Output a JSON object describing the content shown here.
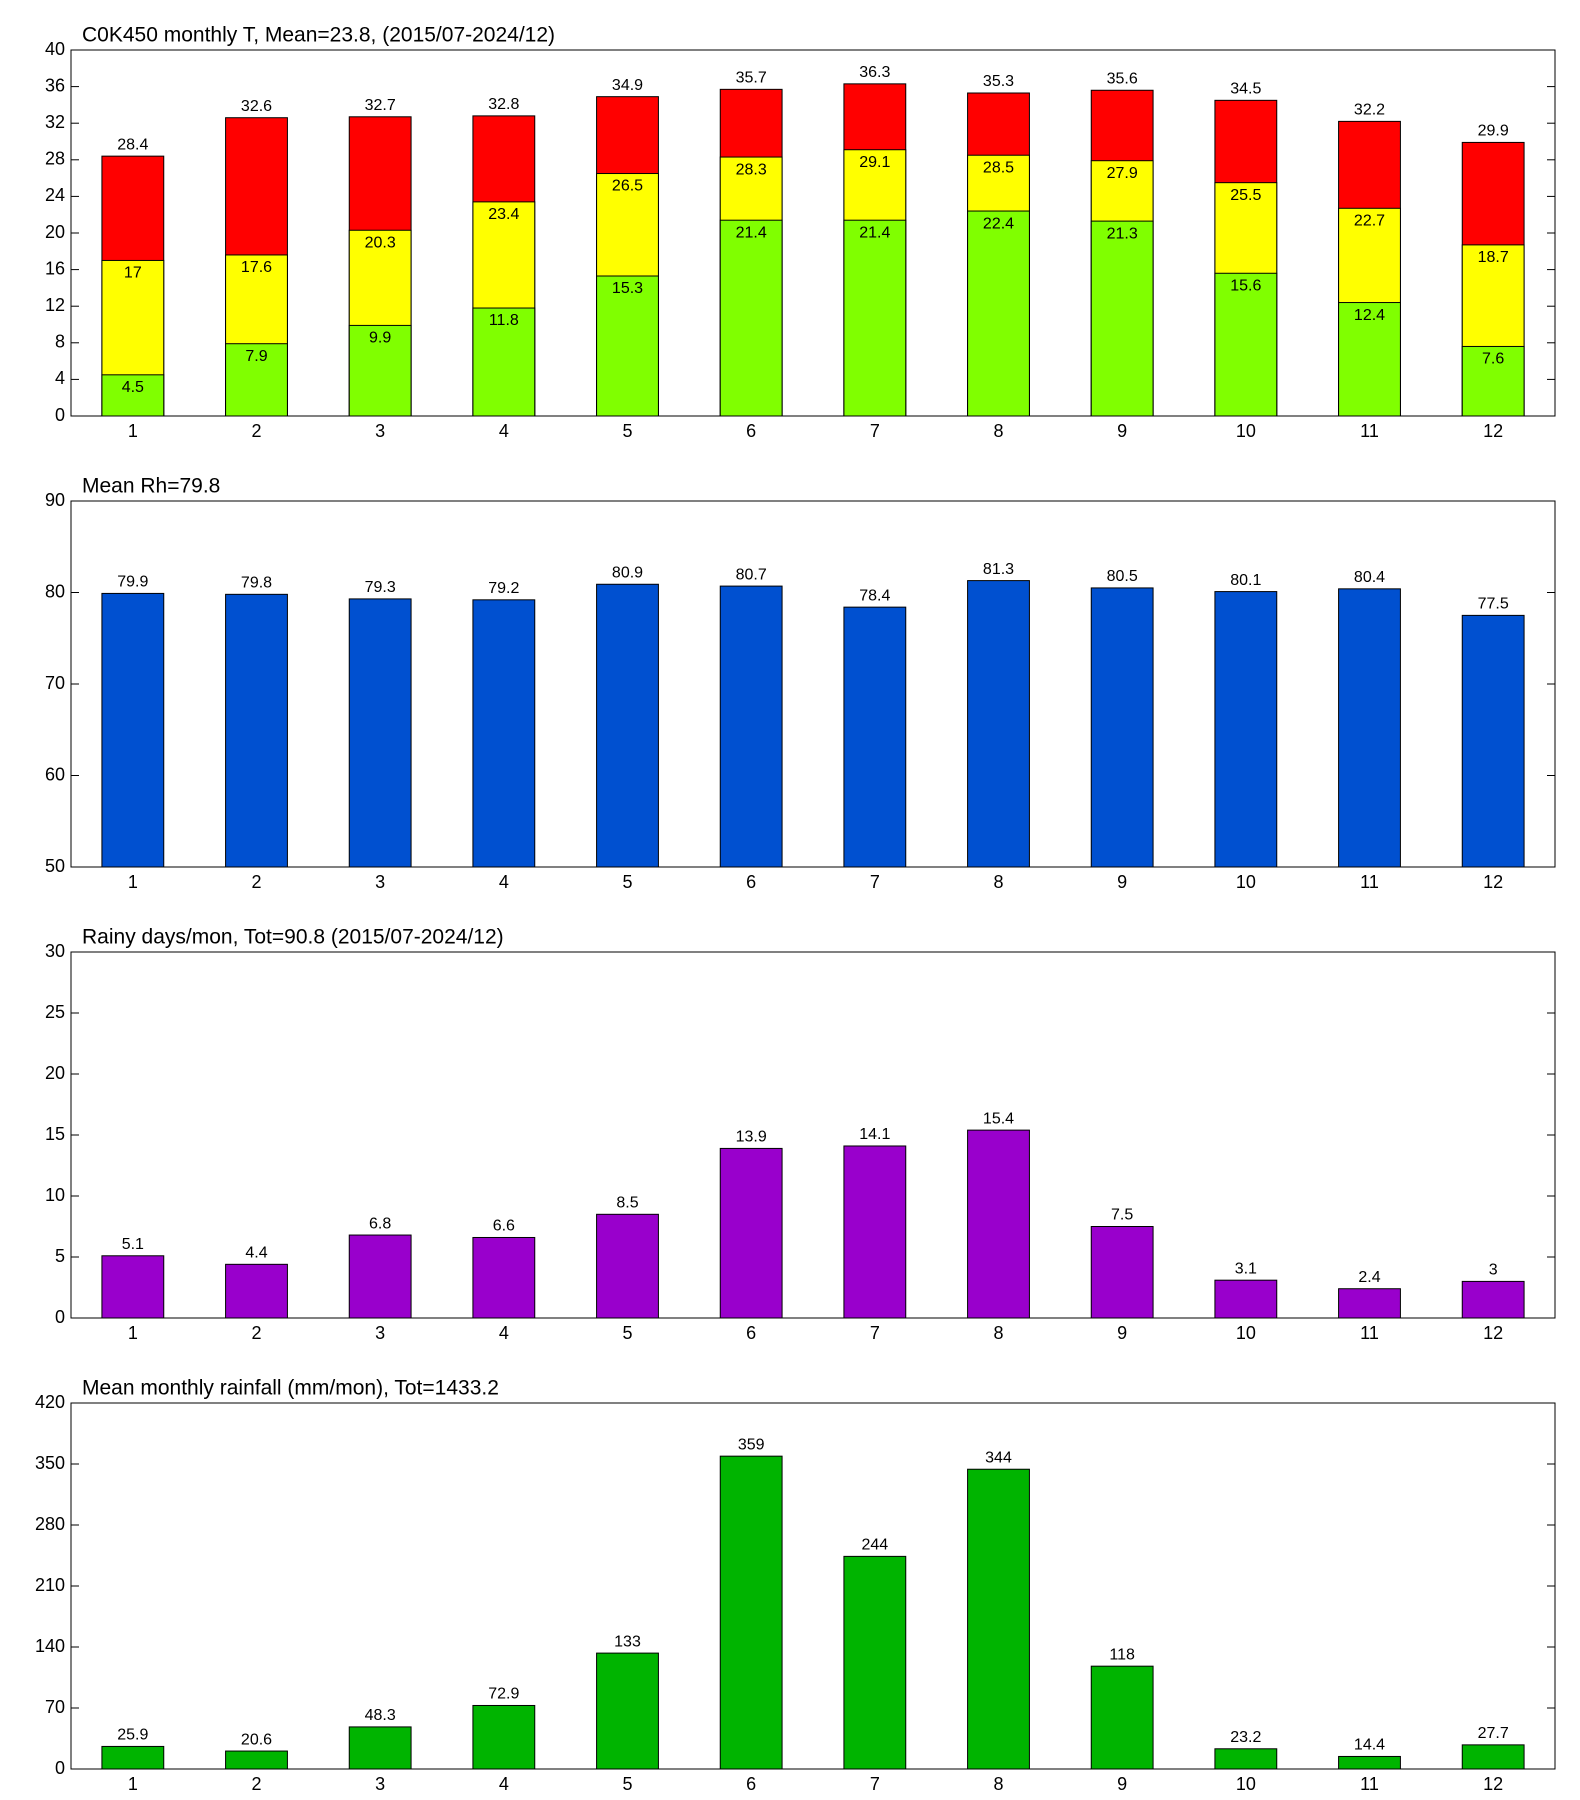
{
  "chart_data": [
    {
      "type": "bar",
      "title": "C0K450 monthly T, Mean=23.8, (2015/07-2024/12)",
      "categories": [
        "1",
        "2",
        "3",
        "4",
        "5",
        "6",
        "7",
        "8",
        "9",
        "10",
        "11",
        "12"
      ],
      "series": [
        {
          "color": "#ff0000",
          "values": [
            28.4,
            32.6,
            32.7,
            32.8,
            34.9,
            35.7,
            36.3,
            35.3,
            35.6,
            34.5,
            32.2,
            29.9
          ]
        },
        {
          "color": "#ffff00",
          "values": [
            17,
            17.6,
            20.3,
            23.4,
            26.5,
            28.3,
            29.1,
            28.5,
            27.9,
            25.5,
            22.7,
            18.7
          ]
        },
        {
          "color": "#80ff00",
          "values": [
            4.5,
            7.9,
            9.9,
            11.8,
            15.3,
            21.4,
            21.4,
            22.4,
            21.3,
            15.6,
            12.4,
            7.6
          ]
        }
      ],
      "ylim": [
        0,
        40
      ],
      "yticks": [
        0,
        4,
        8,
        12,
        16,
        20,
        24,
        28,
        32,
        36,
        40
      ]
    },
    {
      "type": "bar",
      "title": "Mean Rh=79.8",
      "categories": [
        "1",
        "2",
        "3",
        "4",
        "5",
        "6",
        "7",
        "8",
        "9",
        "10",
        "11",
        "12"
      ],
      "values": [
        79.9,
        79.8,
        79.3,
        79.2,
        80.9,
        80.7,
        78.4,
        81.3,
        80.5,
        80.1,
        80.4,
        77.5
      ],
      "color": "#0050d0",
      "ylim": [
        50,
        90
      ],
      "yticks": [
        50,
        60,
        70,
        80,
        90
      ]
    },
    {
      "type": "bar",
      "title": "Rainy days/mon, Tot=90.8 (2015/07-2024/12)",
      "categories": [
        "1",
        "2",
        "3",
        "4",
        "5",
        "6",
        "7",
        "8",
        "9",
        "10",
        "11",
        "12"
      ],
      "values": [
        5.1,
        4.4,
        6.8,
        6.6,
        8.5,
        13.9,
        14.1,
        15.4,
        7.5,
        3.1,
        2.4,
        3
      ],
      "color": "#9900cc",
      "ylim": [
        0,
        30
      ],
      "yticks": [
        0,
        5,
        10,
        15,
        20,
        25,
        30
      ]
    },
    {
      "type": "bar",
      "title": "Mean monthly rainfall (mm/mon), Tot=1433.2",
      "categories": [
        "1",
        "2",
        "3",
        "4",
        "5",
        "6",
        "7",
        "8",
        "9",
        "10",
        "11",
        "12"
      ],
      "values": [
        25.9,
        20.6,
        48.3,
        72.9,
        133,
        359,
        244,
        344,
        118,
        23.2,
        14.4,
        27.7
      ],
      "color": "#00b400",
      "ylim": [
        0,
        420
      ],
      "yticks": [
        0,
        70,
        140,
        210,
        280,
        350,
        420
      ]
    }
  ]
}
